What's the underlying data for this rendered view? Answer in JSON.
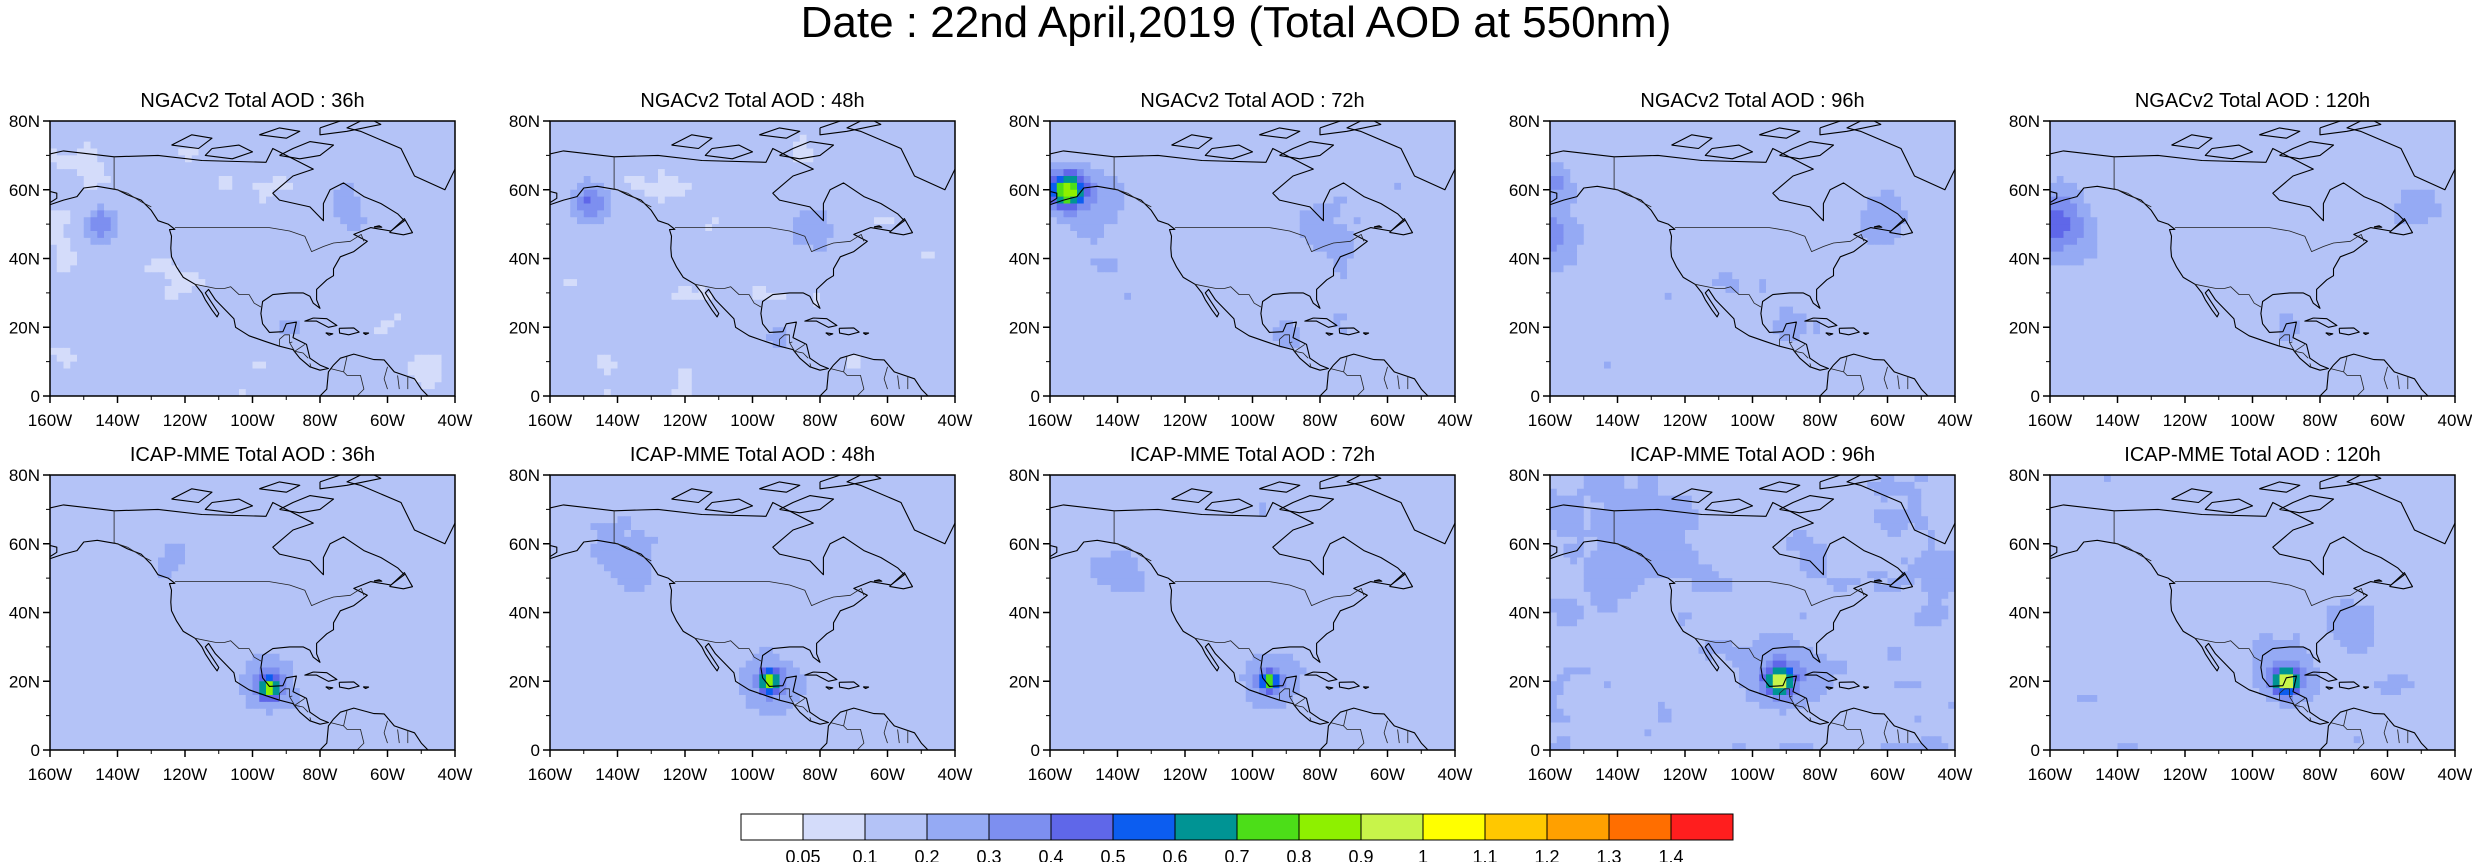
{
  "title": "Date : 22nd April,2019 (Total AOD at 550nm)",
  "axes": {
    "lat_ticks": [
      "80N",
      "60N",
      "40N",
      "20N",
      "0"
    ],
    "lon_ticks": [
      "160W",
      "140W",
      "120W",
      "100W",
      "80W",
      "60W",
      "40W"
    ]
  },
  "panels": [
    {
      "title": "NGACv2 Total AOD : 36h",
      "model": "NGACv2",
      "lead": "36h"
    },
    {
      "title": "NGACv2 Total AOD : 48h",
      "model": "NGACv2",
      "lead": "48h"
    },
    {
      "title": "NGACv2 Total AOD : 72h",
      "model": "NGACv2",
      "lead": "72h"
    },
    {
      "title": "NGACv2 Total AOD : 96h",
      "model": "NGACv2",
      "lead": "96h"
    },
    {
      "title": "NGACv2 Total AOD : 120h",
      "model": "NGACv2",
      "lead": "120h"
    },
    {
      "title": "ICAP-MME Total AOD : 36h",
      "model": "ICAP-MME",
      "lead": "36h"
    },
    {
      "title": "ICAP-MME Total AOD : 48h",
      "model": "ICAP-MME",
      "lead": "48h"
    },
    {
      "title": "ICAP-MME Total AOD : 72h",
      "model": "ICAP-MME",
      "lead": "72h"
    },
    {
      "title": "ICAP-MME Total AOD : 96h",
      "model": "ICAP-MME",
      "lead": "96h"
    },
    {
      "title": "ICAP-MME Total AOD : 120h",
      "model": "ICAP-MME",
      "lead": "120h"
    }
  ],
  "colorbar": {
    "labels": [
      "0.05",
      "0.1",
      "0.2",
      "0.3",
      "0.4",
      "0.5",
      "0.6",
      "0.7",
      "0.8",
      "0.9",
      "1",
      "1.1",
      "1.2",
      "1.3",
      "1.4"
    ],
    "colors": [
      "#ffffff",
      "#d4dcfa",
      "#b4c3f7",
      "#95aaf4",
      "#7d8ff0",
      "#5f67e9",
      "#0c5df0",
      "#009494",
      "#4cde18",
      "#8ef000",
      "#c8f44a",
      "#ffff00",
      "#ffc800",
      "#ffa000",
      "#ff6e00",
      "#ff1e1e"
    ]
  }
}
